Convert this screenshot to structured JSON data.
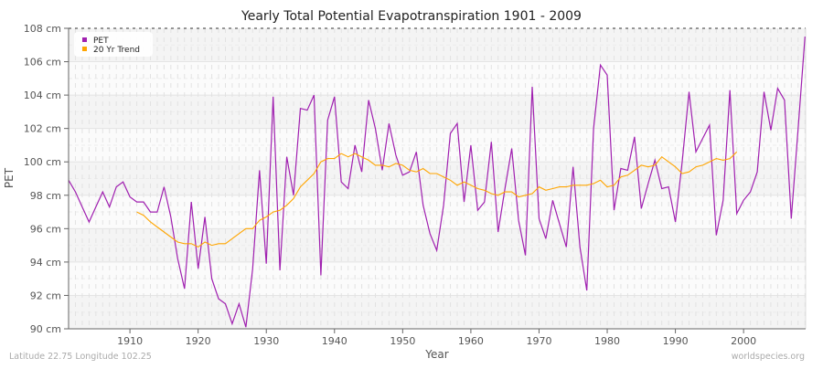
{
  "chart_data": {
    "type": "line",
    "title": "Yearly Total Potential Evapotranspiration 1901 - 2009",
    "xlabel": "Year",
    "ylabel": "PET",
    "xlim": [
      1901,
      2009
    ],
    "ylim": [
      90,
      108
    ],
    "y_unit": "cm",
    "x_ticks": [
      1910,
      1920,
      1930,
      1940,
      1950,
      1960,
      1970,
      1980,
      1990,
      2000
    ],
    "y_ticks": [
      "90 cm",
      "92 cm",
      "94 cm",
      "96 cm",
      "98 cm",
      "100 cm",
      "102 cm",
      "104 cm",
      "106 cm",
      "108 cm"
    ],
    "y_tick_values": [
      90,
      92,
      94,
      96,
      98,
      100,
      102,
      104,
      106,
      108
    ],
    "grid": true,
    "legend_position": "top-left",
    "series": [
      {
        "name": "PET",
        "color": "#a020b0",
        "x_start": 1901,
        "values": [
          98.9,
          98.2,
          97.3,
          96.4,
          97.3,
          98.2,
          97.3,
          98.5,
          98.8,
          97.9,
          97.6,
          97.6,
          97.0,
          97.0,
          98.5,
          96.7,
          94.2,
          92.4,
          97.6,
          93.6,
          96.7,
          93.0,
          91.8,
          91.5,
          90.3,
          91.5,
          90.1,
          93.6,
          99.5,
          93.9,
          103.9,
          93.5,
          100.3,
          98.0,
          103.2,
          103.1,
          104.0,
          93.2,
          102.5,
          103.9,
          98.8,
          98.4,
          101.0,
          99.4,
          103.7,
          102.0,
          99.5,
          102.3,
          100.4,
          99.2,
          99.4,
          100.6,
          97.4,
          95.7,
          94.7,
          97.4,
          101.7,
          102.3,
          97.6,
          101.0,
          97.1,
          97.6,
          101.2,
          95.8,
          98.4,
          100.8,
          96.5,
          94.4,
          104.5,
          96.6,
          95.4,
          97.7,
          96.3,
          94.9,
          99.7,
          94.9,
          92.3,
          102.0,
          105.8,
          105.2,
          97.1,
          99.6,
          99.5,
          101.5,
          97.2,
          98.7,
          100.1,
          98.4,
          98.5,
          96.4,
          100.0,
          104.2,
          100.6,
          101.4,
          102.2,
          95.6,
          97.7,
          104.3,
          96.9,
          97.7,
          98.2,
          99.4,
          104.2,
          101.9,
          104.4,
          103.7,
          96.6,
          102.0,
          107.5
        ]
      },
      {
        "name": "20 Yr Trend",
        "color": "#ffa500",
        "x_start": 1911,
        "values": [
          97.0,
          96.8,
          96.4,
          96.1,
          95.8,
          95.5,
          95.2,
          95.1,
          95.1,
          94.9,
          95.2,
          95.0,
          95.1,
          95.1,
          95.4,
          95.7,
          96.0,
          96.0,
          96.5,
          96.7,
          97.0,
          97.1,
          97.4,
          97.8,
          98.5,
          98.9,
          99.3,
          100.0,
          100.2,
          100.2,
          100.5,
          100.3,
          100.5,
          100.3,
          100.1,
          99.8,
          99.8,
          99.7,
          99.9,
          99.8,
          99.5,
          99.4,
          99.6,
          99.3,
          99.3,
          99.1,
          98.9,
          98.6,
          98.8,
          98.6,
          98.4,
          98.3,
          98.1,
          98.0,
          98.2,
          98.2,
          97.9,
          98.0,
          98.1,
          98.5,
          98.3,
          98.4,
          98.5,
          98.5,
          98.6,
          98.6,
          98.6,
          98.7,
          98.9,
          98.5,
          98.6,
          99.1,
          99.2,
          99.5,
          99.8,
          99.7,
          99.8,
          100.3,
          100.0,
          99.7,
          99.3,
          99.4,
          99.7,
          99.8,
          100.0,
          100.2,
          100.1,
          100.2,
          100.6
        ]
      }
    ]
  },
  "footer": {
    "location": "Latitude 22.75 Longitude 102.25",
    "source": "worldspecies.org"
  }
}
